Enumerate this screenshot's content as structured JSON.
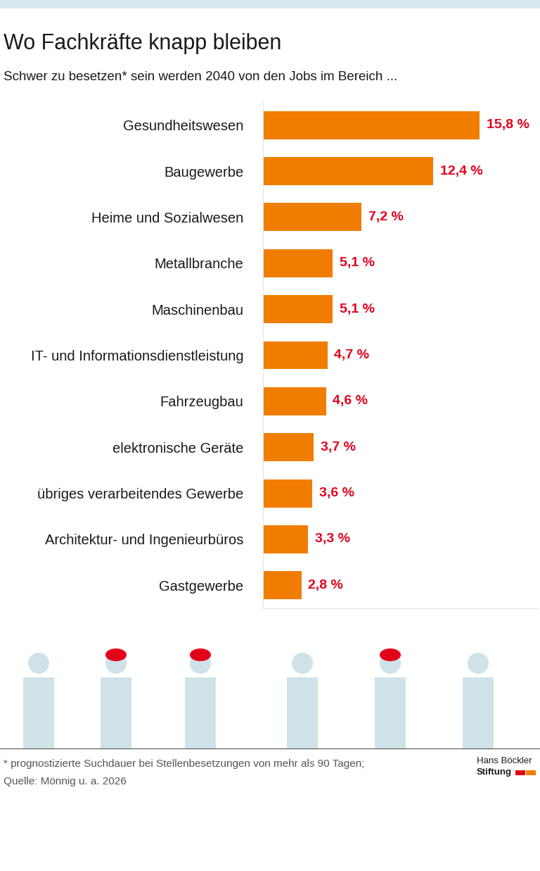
{
  "chart_data": {
    "type": "bar",
    "orientation": "horizontal",
    "title": "Wo Fachkräfte knapp bleiben",
    "subtitle": "Schwer zu besetzen* sein werden 2040 von den Jobs im Bereich ...",
    "categories": [
      "Gesundheitswesen",
      "Baugewerbe",
      "Heime und Sozialwesen",
      "Metallbranche",
      "Maschinenbau",
      "IT- und Informationsdienstleistung",
      "Fahrzeugbau",
      "elektronische Geräte",
      "übriges verarbeitendes Gewerbe",
      "Architektur- und Ingenieurbüros",
      "Gastgewerbe"
    ],
    "values": [
      15.8,
      12.4,
      7.2,
      5.1,
      5.1,
      4.7,
      4.6,
      3.7,
      3.6,
      3.3,
      2.8
    ],
    "value_labels": [
      "15,8 %",
      "12,4 %",
      "7,2 %",
      "5,1 %",
      "5,1 %",
      "4,7 %",
      "4,6 %",
      "3,7 %",
      "3,6 %",
      "3,3 %",
      "2,8 %"
    ],
    "data_labels": true,
    "color": "#f07d00",
    "xlim": [
      0,
      20
    ],
    "xticks": [],
    "tick_labels": "y",
    "grid": false,
    "footnote": "* prognostizierte Suchdauer bei Stellenbesetzungen von mehr als 90 Tagen;",
    "source": "Quelle: Mönnig u. a. 2026",
    "publisher": [
      "Hans Böckler",
      "Stiftung"
    ]
  }
}
